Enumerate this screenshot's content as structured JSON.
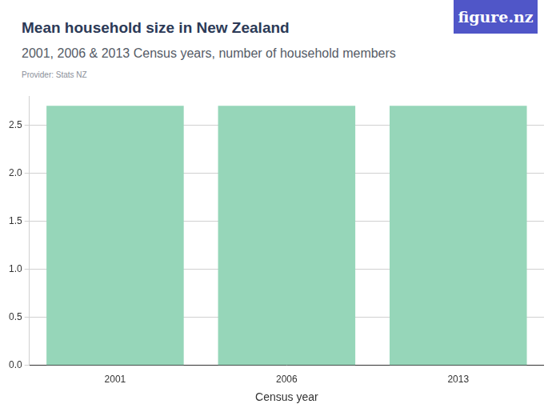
{
  "chart_data": {
    "type": "bar",
    "title": "Mean household size in New Zealand",
    "subtitle": "2001, 2006 & 2013 Census years, number of household members",
    "annotations": [
      "Provider: Stats NZ",
      "figure.nz"
    ],
    "x_label": "Census year",
    "categories": [
      "2001",
      "2006",
      "2013"
    ],
    "values": [
      2.7,
      2.7,
      2.7
    ],
    "color": "#96d6b9",
    "ylim": [
      0,
      2.8
    ],
    "yticks": [
      {
        "value": 0,
        "label": "0.0"
      },
      0.5,
      {
        "value": 1,
        "label": "1.0"
      },
      1.5,
      {
        "value": 2,
        "label": "2.0"
      },
      2.5
    ],
    "grid": true
  }
}
